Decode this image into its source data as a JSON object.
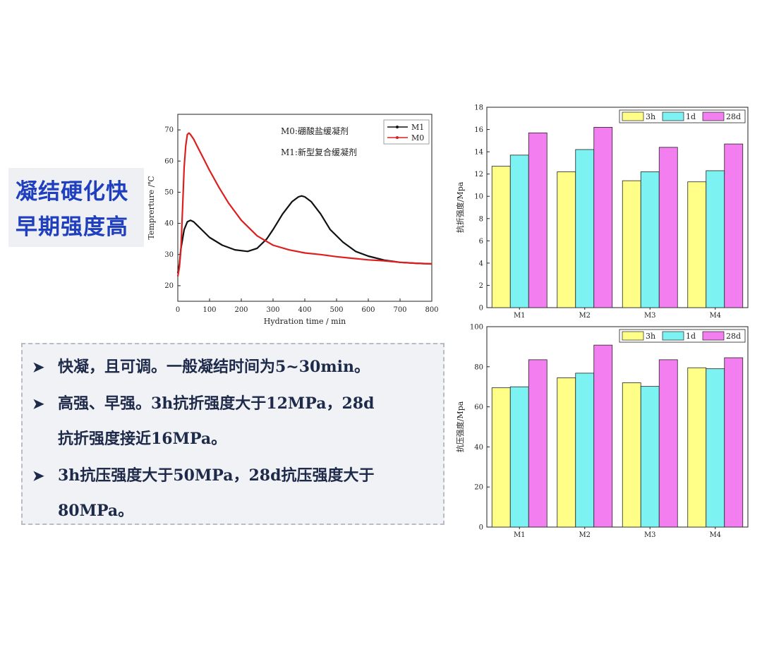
{
  "heading": {
    "line1": "凝结硬化快",
    "line2": "早期强度高"
  },
  "bullets": [
    {
      "icon": "arrow-bullet-icon",
      "lines": [
        "快凝，且可调。一般凝结时间为5~30min。"
      ]
    },
    {
      "icon": "arrow-bullet-icon",
      "lines": [
        "高强、早强。3h抗折强度大于12MPa，28d",
        "抗折强度接近16MPa。"
      ]
    },
    {
      "icon": "arrow-bullet-icon",
      "lines": [
        "3h抗压强度大于50MPa，28d抗压强度大于",
        "80MPa。"
      ]
    }
  ],
  "chart_data": [
    {
      "type": "line",
      "xlabel": "Hydration time / min",
      "ylabel": "Temprerture /℃",
      "xlim": [
        0,
        800
      ],
      "ylim": [
        15,
        75
      ],
      "xticks": [
        0,
        100,
        200,
        300,
        400,
        500,
        600,
        700,
        800
      ],
      "yticks": [
        20,
        30,
        40,
        50,
        60,
        70
      ],
      "annotations": [
        "M0:硼酸盐缓凝剂",
        "M1:新型复合缓凝剂"
      ],
      "legend_position": "top-right",
      "series": [
        {
          "name": "M1",
          "color": "#111111",
          "x": [
            0,
            5,
            10,
            20,
            30,
            40,
            50,
            60,
            80,
            100,
            140,
            180,
            220,
            250,
            280,
            300,
            330,
            360,
            380,
            390,
            400,
            420,
            450,
            480,
            520,
            560,
            600,
            650,
            700,
            750,
            800
          ],
          "y": [
            24,
            27,
            32,
            38,
            40.5,
            41,
            40.5,
            39.5,
            37.5,
            35.5,
            33,
            31.5,
            31,
            32,
            35,
            38,
            43,
            47,
            48.5,
            48.8,
            48.5,
            47,
            43,
            38,
            34,
            31,
            29.5,
            28.2,
            27.5,
            27.2,
            27
          ]
        },
        {
          "name": "M0",
          "color": "#dd1f1f",
          "x": [
            0,
            5,
            10,
            15,
            20,
            25,
            30,
            35,
            40,
            50,
            60,
            80,
            100,
            130,
            160,
            200,
            250,
            300,
            350,
            400,
            450,
            500,
            550,
            600,
            650,
            700,
            750,
            800
          ],
          "y": [
            23,
            26,
            32,
            45,
            58,
            65,
            68.5,
            69,
            68.5,
            67,
            65,
            61,
            57,
            51.5,
            46.5,
            41,
            36,
            33,
            31.5,
            30.5,
            30,
            29.3,
            28.8,
            28.3,
            28,
            27.5,
            27.2,
            27
          ]
        }
      ]
    },
    {
      "type": "bar",
      "ylabel": "抗折强度/Mpa",
      "ylim": [
        0,
        18
      ],
      "yticks": [
        0,
        2,
        4,
        6,
        8,
        10,
        12,
        14,
        16,
        18
      ],
      "categories": [
        "M1",
        "M2",
        "M3",
        "M4"
      ],
      "legend_position": "top-right",
      "series": [
        {
          "name": "3h",
          "color": "#ffff88",
          "values": [
            12.7,
            12.2,
            11.4,
            11.3
          ]
        },
        {
          "name": "1d",
          "color": "#7df2f2",
          "values": [
            13.7,
            14.2,
            12.2,
            12.3
          ]
        },
        {
          "name": "28d",
          "color": "#f27ef0",
          "values": [
            15.7,
            16.2,
            14.4,
            14.7
          ]
        }
      ]
    },
    {
      "type": "bar",
      "ylabel": "抗压强度/Mpa",
      "ylim": [
        0,
        100
      ],
      "yticks": [
        0,
        20,
        40,
        60,
        80,
        100
      ],
      "categories": [
        "M1",
        "M2",
        "M3",
        "M4"
      ],
      "legend_position": "top-right",
      "series": [
        {
          "name": "3h",
          "color": "#ffff88",
          "values": [
            69.5,
            74.5,
            72,
            79.5
          ]
        },
        {
          "name": "1d",
          "color": "#7df2f2",
          "values": [
            70,
            76.8,
            70.2,
            79
          ]
        },
        {
          "name": "28d",
          "color": "#f27ef0",
          "values": [
            83.5,
            90.8,
            83.5,
            84.5
          ]
        }
      ]
    }
  ]
}
